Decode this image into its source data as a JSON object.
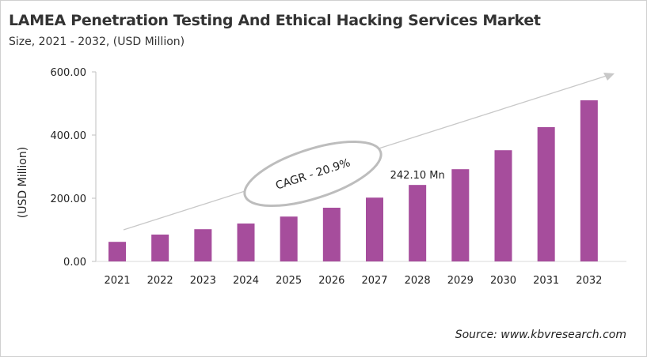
{
  "header": {
    "title": "LAMEA Penetration Testing And Ethical Hacking Services Market",
    "subtitle": "Size, 2021 - 2032, (USD Million)"
  },
  "source": "Source: www.kbvresearch.com",
  "chart_data": {
    "type": "bar",
    "title": "LAMEA Penetration Testing And Ethical Hacking Services Market",
    "subtitle": "Size, 2021 - 2032, (USD Million)",
    "xlabel": "",
    "ylabel": "(USD Million)",
    "ylim": [
      0,
      600
    ],
    "yticks": [
      "0.00",
      "200.00",
      "400.00",
      "600.00"
    ],
    "categories": [
      "2021",
      "2022",
      "2023",
      "2024",
      "2025",
      "2026",
      "2027",
      "2028",
      "2029",
      "2030",
      "2031",
      "2032"
    ],
    "values": [
      62,
      85,
      102,
      120,
      142,
      170,
      202,
      242.1,
      292,
      352,
      425,
      510
    ],
    "bar_color": "#a64d9c",
    "grid": false,
    "annotations": [
      {
        "text": "242.10 Mn",
        "category": "2028"
      },
      {
        "text": "CAGR - 20.9%"
      }
    ]
  }
}
